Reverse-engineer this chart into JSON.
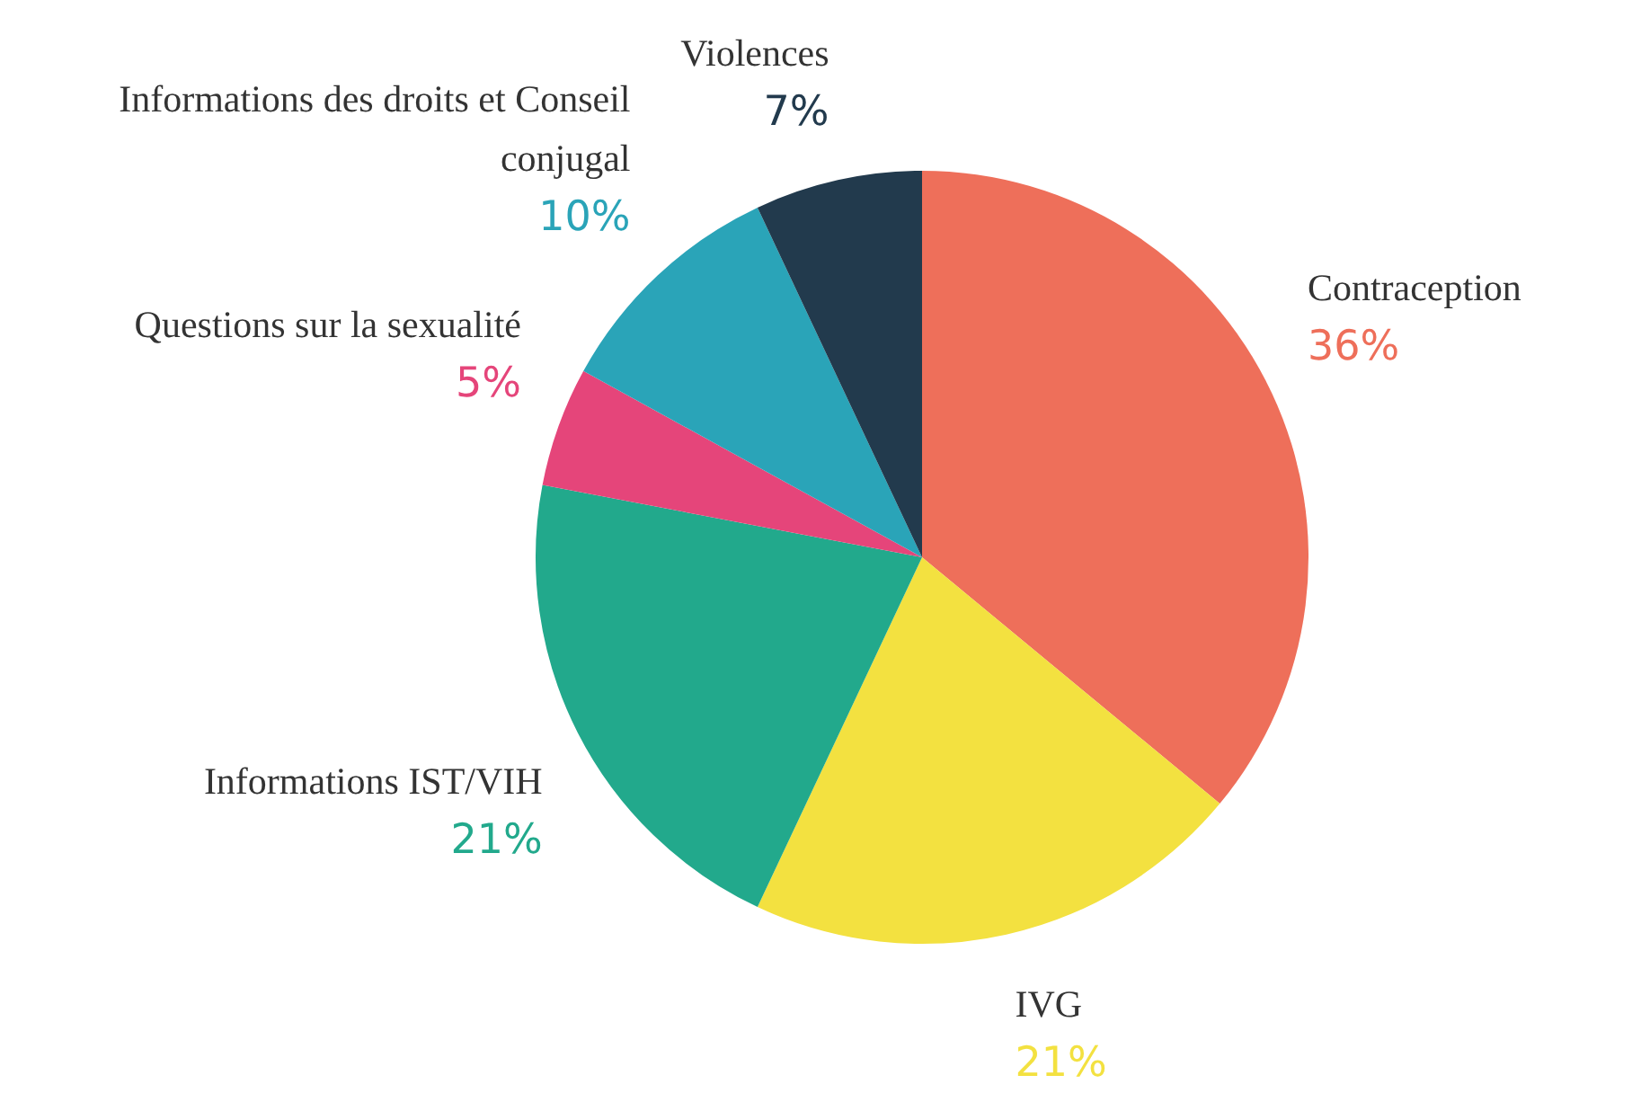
{
  "chart_data": {
    "type": "pie",
    "categories": [
      "Contraception",
      "IVG",
      "Informations IST/VIH",
      "Questions sur la sexualité",
      "Informations des droits et Conseil conjugal",
      "Violences"
    ],
    "values": [
      36,
      21,
      21,
      5,
      10,
      7
    ],
    "value_labels": [
      "36%",
      "21%",
      "21%",
      "5%",
      "10%",
      "7%"
    ],
    "colors": [
      "#ee6f5a",
      "#f3e140",
      "#22a98c",
      "#e5457a",
      "#2aa4b8",
      "#223a4d"
    ],
    "legend": false
  }
}
